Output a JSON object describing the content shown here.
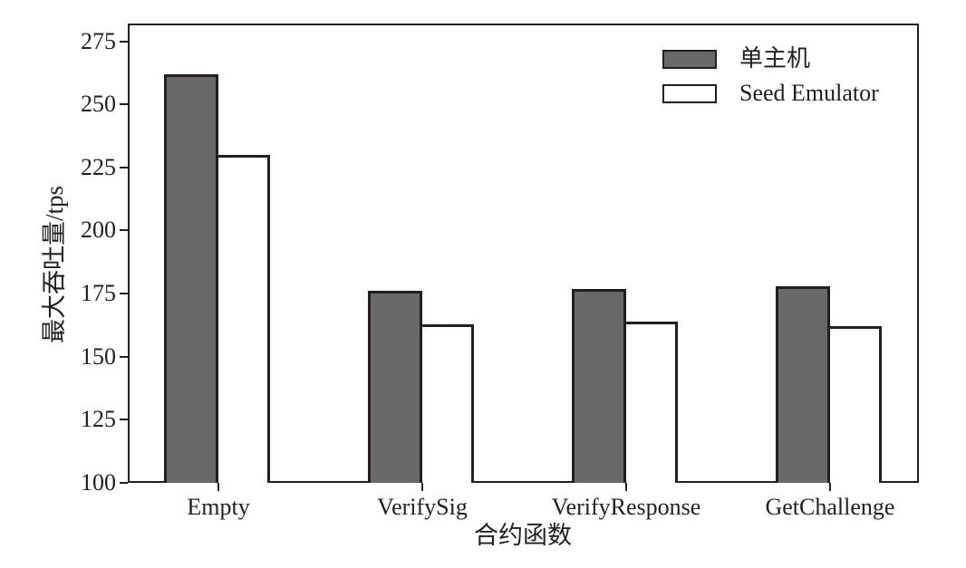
{
  "chart_data": {
    "type": "bar",
    "title": "",
    "categories": [
      "Empty",
      "VerifySig",
      "VerifyResponse",
      "GetChallenge"
    ],
    "series": [
      {
        "name": "单主机",
        "color": "#696969",
        "values": [
          262,
          176,
          177,
          178
        ]
      },
      {
        "name": "Seed Emulator",
        "color": "#ffffff",
        "values": [
          230,
          163,
          164,
          162
        ]
      }
    ],
    "xlabel": "合约函数",
    "ylabel": "最大吞吐量/tps",
    "ylim": [
      100,
      282
    ],
    "yticks": [
      100,
      125,
      150,
      175,
      200,
      225,
      250,
      275
    ],
    "grid": false,
    "legend_position": "upper-right",
    "axis_color": "#231f20",
    "bar_edge_color": "#231f20"
  }
}
